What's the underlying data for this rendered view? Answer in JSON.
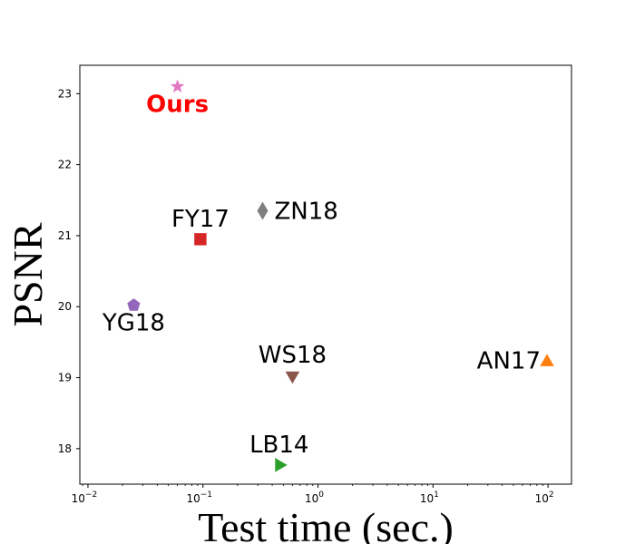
{
  "chart_data": {
    "type": "scatter",
    "title": "",
    "xlabel": "Test time (sec.)",
    "ylabel": "PSNR",
    "xscale": "log",
    "xlim": [
      0.0085,
      160
    ],
    "ylim": [
      17.5,
      23.4
    ],
    "xticks": [
      {
        "value": 0.01,
        "base": "10",
        "exp": "−2"
      },
      {
        "value": 0.1,
        "base": "10",
        "exp": "−1"
      },
      {
        "value": 1,
        "base": "10",
        "exp": "0"
      },
      {
        "value": 10,
        "base": "10",
        "exp": "1"
      },
      {
        "value": 100,
        "base": "10",
        "exp": "2"
      }
    ],
    "yticks": [
      18,
      19,
      20,
      21,
      22,
      23
    ],
    "grid": false,
    "points": [
      {
        "label": "Ours",
        "x": 0.06,
        "y": 23.1,
        "marker": "star",
        "color": "#e377c2",
        "label_color": "#ff0000",
        "label_bold": true,
        "label_pos": "below"
      },
      {
        "label": "FY17",
        "x": 0.095,
        "y": 20.95,
        "marker": "square",
        "color": "#d62728",
        "label_color": "#000000",
        "label_bold": false,
        "label_pos": "above"
      },
      {
        "label": "ZN18",
        "x": 0.33,
        "y": 21.35,
        "marker": "diamond",
        "color": "#7f7f7f",
        "label_color": "#000000",
        "label_bold": false,
        "label_pos": "right"
      },
      {
        "label": "YG18",
        "x": 0.025,
        "y": 20.02,
        "marker": "pentagon",
        "color": "#9467bd",
        "label_color": "#000000",
        "label_bold": false,
        "label_pos": "below"
      },
      {
        "label": "WS18",
        "x": 0.6,
        "y": 19.03,
        "marker": "triangle-down",
        "color": "#8c564b",
        "label_color": "#000000",
        "label_bold": false,
        "label_pos": "above"
      },
      {
        "label": "AN17",
        "x": 98,
        "y": 19.22,
        "marker": "triangle-up",
        "color": "#ff7f0e",
        "label_color": "#000000",
        "label_bold": false,
        "label_pos": "left"
      },
      {
        "label": "LB14",
        "x": 0.46,
        "y": 17.77,
        "marker": "triangle-right",
        "color": "#2ca02c",
        "label_color": "#000000",
        "label_bold": false,
        "label_pos": "above"
      }
    ]
  }
}
